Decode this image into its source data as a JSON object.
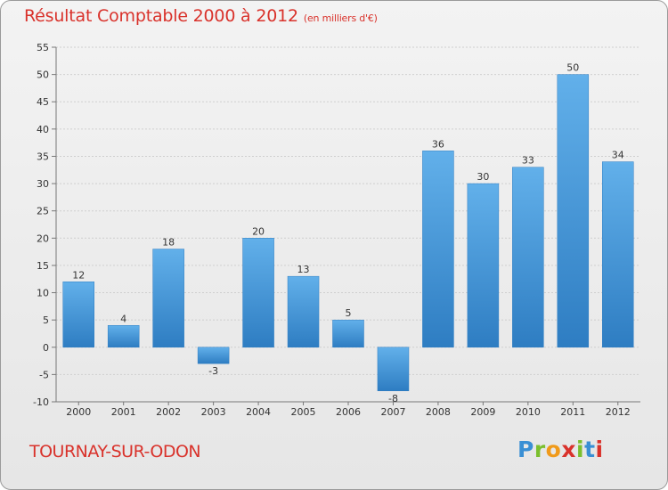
{
  "header": {
    "title": "Résultat Comptable 2000 à 2012",
    "subtitle": "(en milliers d'€)"
  },
  "footer": {
    "commune": "TOURNAY-SUR-ODON",
    "logo_letters": [
      "P",
      "r",
      "o",
      "x",
      "i",
      "t",
      "i"
    ],
    "logo_colors": [
      "#3a8fd4",
      "#7bbf2e",
      "#f09a1a",
      "#d9322b",
      "#7bbf2e",
      "#3a8fd4",
      "#d9322b"
    ]
  },
  "colors": {
    "bar": "#4a9ee0",
    "bar_light": "#62b0ea",
    "bar_dark": "#2e7dc2",
    "title": "#d9322b",
    "grid": "#cfcfcf"
  },
  "chart_data": {
    "type": "bar",
    "categories": [
      "2000",
      "2001",
      "2002",
      "2003",
      "2004",
      "2005",
      "2006",
      "2007",
      "2008",
      "2009",
      "2010",
      "2011",
      "2012"
    ],
    "values": [
      12,
      4,
      18,
      -3,
      20,
      13,
      5,
      -8,
      36,
      30,
      33,
      50,
      34
    ],
    "ylim": [
      -10,
      55
    ],
    "yticks": [
      -10,
      -5,
      0,
      5,
      10,
      15,
      20,
      25,
      30,
      35,
      40,
      45,
      50,
      55
    ],
    "grid": true,
    "data_labels": true
  }
}
